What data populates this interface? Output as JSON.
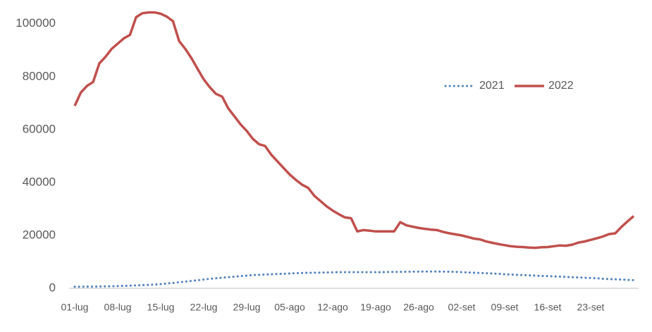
{
  "chart_data": {
    "type": "line",
    "categories": [
      "01-lug",
      null,
      null,
      null,
      null,
      null,
      null,
      "08-lug",
      null,
      null,
      null,
      null,
      null,
      null,
      "15-lug",
      null,
      null,
      null,
      null,
      null,
      null,
      "22-lug",
      null,
      null,
      null,
      null,
      null,
      null,
      "29-lug",
      null,
      null,
      null,
      null,
      null,
      null,
      "05-ago",
      null,
      null,
      null,
      null,
      null,
      null,
      "12-ago",
      null,
      null,
      null,
      null,
      null,
      null,
      "19-ago",
      null,
      null,
      null,
      null,
      null,
      null,
      "26-ago",
      null,
      null,
      null,
      null,
      null,
      null,
      "02-set",
      null,
      null,
      null,
      null,
      null,
      null,
      "09-set",
      null,
      null,
      null,
      null,
      null,
      null,
      "16-set",
      null,
      null,
      null,
      null,
      null,
      null,
      "23-set",
      null,
      null,
      null,
      null,
      null,
      null,
      null
    ],
    "series": [
      {
        "name": "2021",
        "color": "#4f81bd",
        "style": "dotted",
        "values": [
          600,
          600,
          650,
          650,
          700,
          750,
          800,
          850,
          900,
          1000,
          1100,
          1200,
          1300,
          1400,
          1600,
          1800,
          2000,
          2300,
          2500,
          2800,
          3000,
          3300,
          3600,
          3800,
          4000,
          4200,
          4400,
          4600,
          4800,
          5000,
          5100,
          5200,
          5300,
          5400,
          5500,
          5600,
          5700,
          5800,
          5850,
          5900,
          5950,
          6000,
          6050,
          6100,
          6100,
          6100,
          6100,
          6100,
          6100,
          6100,
          6100,
          6150,
          6200,
          6200,
          6250,
          6300,
          6300,
          6350,
          6350,
          6350,
          6300,
          6250,
          6200,
          6100,
          6000,
          5900,
          5800,
          5700,
          5600,
          5500,
          5300,
          5200,
          5100,
          5000,
          4900,
          4800,
          4700,
          4600,
          4500,
          4400,
          4300,
          4200,
          4100,
          4000,
          3900,
          3800,
          3600,
          3500,
          3400,
          3300,
          3200,
          3100
        ]
      },
      {
        "name": "2022",
        "color": "#c0504d",
        "style": "solid",
        "values": [
          69000,
          74000,
          76500,
          78000,
          85000,
          87500,
          90500,
          92500,
          94500,
          95800,
          102500,
          104000,
          104300,
          104300,
          103800,
          102700,
          101000,
          93500,
          90500,
          87000,
          83000,
          79000,
          76000,
          73500,
          72500,
          68000,
          65000,
          62000,
          59500,
          56500,
          54500,
          53800,
          50500,
          48000,
          45500,
          43000,
          41000,
          39200,
          38000,
          35000,
          33000,
          31000,
          29400,
          28000,
          26800,
          26500,
          21500,
          22000,
          21800,
          21500,
          21500,
          21500,
          21500,
          25000,
          23800,
          23300,
          22800,
          22500,
          22200,
          22000,
          21300,
          20800,
          20400,
          20000,
          19400,
          18800,
          18500,
          17700,
          17200,
          16700,
          16300,
          15900,
          15700,
          15600,
          15400,
          15300,
          15500,
          15600,
          15900,
          16200,
          16100,
          16500,
          17300,
          17700,
          18300,
          18900,
          19600,
          20500,
          20800,
          23200,
          25300,
          27300
        ]
      }
    ],
    "ylim": [
      0,
      105000
    ],
    "yticks": [
      0,
      20000,
      40000,
      60000,
      80000,
      100000
    ],
    "grid": false,
    "legend": "right"
  }
}
